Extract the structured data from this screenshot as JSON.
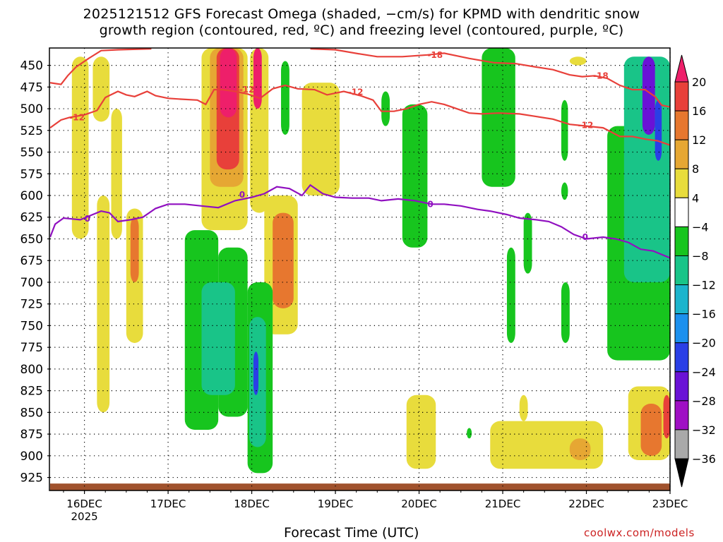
{
  "chart_data": {
    "type": "heatmap",
    "title_line1": "2025121512 GFS Forecast Omega (shaded, −cm/s) for KPMD with dendritic snow",
    "title_line2": "growth region (contoured, red, ºC) and freezing level (contoured, purple, ºC)",
    "xlabel": "Forecast Time (UTC)",
    "x_ticks": [
      "16DEC",
      "17DEC",
      "18DEC",
      "19DEC",
      "20DEC",
      "21DEC",
      "22DEC",
      "23DEC"
    ],
    "x_tick_days": [
      1,
      2,
      3,
      4,
      5,
      6,
      7,
      8
    ],
    "year_label": "2025",
    "xlim_days": [
      0.59,
      8
    ],
    "y_ticks": [
      450,
      475,
      500,
      525,
      550,
      575,
      600,
      625,
      650,
      675,
      700,
      725,
      750,
      775,
      800,
      825,
      850,
      875,
      900,
      925
    ],
    "y_label_texts": [
      "450",
      "475",
      "500",
      "525",
      "550",
      "575",
      "600",
      "625",
      "650",
      "675",
      "700",
      "725",
      "750",
      "775",
      "800",
      "825",
      "850",
      "875",
      "900",
      "925"
    ],
    "ylim_hpa": [
      430,
      940
    ],
    "y_reversed": true,
    "colorbar": {
      "levels": [
        20,
        16,
        12,
        8,
        4,
        -4,
        -8,
        -12,
        -16,
        -20,
        -24,
        -28,
        -32,
        -36
      ],
      "labels": [
        "20",
        "16",
        "12",
        "8",
        "4",
        "−4",
        "−8",
        "−12",
        "−16",
        "−20",
        "−24",
        "−28",
        "−32",
        "−36"
      ],
      "colors": [
        "#ee1f6a",
        "#e8403a",
        "#e7772f",
        "#e6a733",
        "#e8dc3c",
        "#ffffff",
        "#17c51e",
        "#19c488",
        "#1cb4cd",
        "#1c90ee",
        "#2a3fe6",
        "#6a12d6",
        "#9f10c4",
        "#a9a9a9",
        "#000000"
      ]
    },
    "contours_red": [
      {
        "value": -18,
        "label": "-18",
        "points": [
          [
            0.59,
            470
          ],
          [
            0.72,
            472
          ],
          [
            0.8,
            462
          ],
          [
            0.9,
            452
          ],
          [
            1.05,
            442
          ],
          [
            1.2,
            433
          ],
          [
            1.4,
            432
          ],
          [
            1.8,
            431
          ]
        ]
      },
      {
        "value": -18,
        "label": "-18",
        "points": [
          [
            3.7,
            431
          ],
          [
            4.0,
            432
          ],
          [
            4.3,
            437
          ],
          [
            4.5,
            440
          ],
          [
            4.8,
            440
          ],
          [
            5.1,
            438
          ],
          [
            5.3,
            436
          ],
          [
            5.6,
            442
          ],
          [
            5.9,
            447
          ],
          [
            6.15,
            448
          ],
          [
            6.4,
            452
          ],
          [
            6.6,
            455
          ],
          [
            6.8,
            461
          ],
          [
            6.95,
            463
          ],
          [
            7.1,
            462
          ],
          [
            7.25,
            465
          ],
          [
            7.4,
            473
          ],
          [
            7.55,
            478
          ],
          [
            7.7,
            478
          ],
          [
            7.82,
            486
          ],
          [
            7.9,
            496
          ],
          [
            8.0,
            498
          ]
        ]
      },
      {
        "value": -12,
        "label": "-12",
        "points": [
          [
            0.59,
            522
          ],
          [
            0.72,
            513
          ],
          [
            0.82,
            510
          ],
          [
            1.0,
            507
          ],
          [
            1.15,
            502
          ],
          [
            1.25,
            487
          ],
          [
            1.4,
            480
          ],
          [
            1.5,
            484
          ],
          [
            1.6,
            486
          ],
          [
            1.75,
            480
          ],
          [
            1.85,
            485
          ],
          [
            2.0,
            488
          ],
          [
            2.15,
            489
          ],
          [
            2.35,
            490
          ],
          [
            2.45,
            495
          ],
          [
            2.55,
            478
          ],
          [
            2.65,
            478
          ],
          [
            2.8,
            480
          ],
          [
            2.95,
            483
          ],
          [
            3.1,
            488
          ],
          [
            3.25,
            477
          ],
          [
            3.4,
            473
          ],
          [
            3.55,
            477
          ],
          [
            3.75,
            478
          ],
          [
            3.9,
            484
          ],
          [
            4.1,
            480
          ],
          [
            4.3,
            485
          ],
          [
            4.45,
            490
          ],
          [
            4.55,
            503
          ],
          [
            4.7,
            503
          ],
          [
            4.85,
            500
          ],
          [
            5.0,
            495
          ],
          [
            5.15,
            492
          ],
          [
            5.3,
            495
          ],
          [
            5.45,
            500
          ],
          [
            5.6,
            505
          ],
          [
            5.75,
            506
          ],
          [
            5.95,
            505
          ],
          [
            6.2,
            506
          ],
          [
            6.4,
            509
          ],
          [
            6.6,
            512
          ],
          [
            6.8,
            518
          ],
          [
            7.0,
            520
          ],
          [
            7.2,
            522
          ],
          [
            7.4,
            532
          ],
          [
            7.55,
            532
          ],
          [
            7.7,
            535
          ],
          [
            7.85,
            537
          ],
          [
            8.0,
            542
          ]
        ]
      }
    ],
    "contours_purple": [
      {
        "value": 0,
        "label": "0",
        "points": [
          [
            0.59,
            648
          ],
          [
            0.65,
            633
          ],
          [
            0.75,
            626
          ],
          [
            0.85,
            627
          ],
          [
            0.95,
            628
          ],
          [
            1.1,
            622
          ],
          [
            1.2,
            618
          ],
          [
            1.3,
            620
          ],
          [
            1.4,
            630
          ],
          [
            1.55,
            628
          ],
          [
            1.7,
            625
          ],
          [
            1.85,
            615
          ],
          [
            2.0,
            610
          ],
          [
            2.2,
            610
          ],
          [
            2.4,
            612
          ],
          [
            2.6,
            614
          ],
          [
            2.8,
            606
          ],
          [
            3.0,
            602
          ],
          [
            3.15,
            598
          ],
          [
            3.3,
            590
          ],
          [
            3.45,
            592
          ],
          [
            3.6,
            600
          ],
          [
            3.7,
            588
          ],
          [
            3.85,
            598
          ],
          [
            4.0,
            602
          ],
          [
            4.2,
            603
          ],
          [
            4.4,
            603
          ],
          [
            4.55,
            606
          ],
          [
            4.75,
            604
          ],
          [
            4.95,
            606
          ],
          [
            5.15,
            610
          ],
          [
            5.3,
            610
          ],
          [
            5.5,
            612
          ],
          [
            5.7,
            616
          ],
          [
            5.85,
            618
          ],
          [
            6.05,
            622
          ],
          [
            6.2,
            626
          ],
          [
            6.4,
            628
          ],
          [
            6.55,
            630
          ],
          [
            6.7,
            636
          ],
          [
            6.85,
            645
          ],
          [
            7.0,
            650
          ],
          [
            7.2,
            648
          ],
          [
            7.35,
            650
          ],
          [
            7.5,
            654
          ],
          [
            7.65,
            662
          ],
          [
            7.8,
            664
          ],
          [
            7.9,
            668
          ],
          [
            8.0,
            672
          ]
        ]
      }
    ],
    "omega_regions": [
      {
        "value": 4,
        "color": "#e8dc3c",
        "x0": 0.85,
        "x1": 1.05,
        "p0": 440,
        "p1": 650
      },
      {
        "value": 4,
        "color": "#e8dc3c",
        "x0": 1.1,
        "x1": 1.3,
        "p0": 440,
        "p1": 515
      },
      {
        "value": 4,
        "color": "#e8dc3c",
        "x0": 1.15,
        "x1": 1.3,
        "p0": 600,
        "p1": 850
      },
      {
        "value": 4,
        "color": "#e8dc3c",
        "x0": 1.32,
        "x1": 1.45,
        "p0": 500,
        "p1": 650
      },
      {
        "value": 4,
        "color": "#e8dc3c",
        "x0": 1.5,
        "x1": 1.7,
        "p0": 615,
        "p1": 770
      },
      {
        "value": 12,
        "color": "#e7772f",
        "x0": 1.55,
        "x1": 1.65,
        "p0": 625,
        "p1": 700
      },
      {
        "value": 4,
        "color": "#e8dc3c",
        "x0": 2.25,
        "x1": 2.35,
        "p0": 770,
        "p1": 830
      },
      {
        "value": 4,
        "color": "#e8dc3c",
        "x0": 2.4,
        "x1": 2.95,
        "p0": 430,
        "p1": 640
      },
      {
        "value": 8,
        "color": "#e6a733",
        "x0": 2.5,
        "x1": 2.9,
        "p0": 430,
        "p1": 590
      },
      {
        "value": 16,
        "color": "#e8403a",
        "x0": 2.58,
        "x1": 2.85,
        "p0": 430,
        "p1": 570
      },
      {
        "value": 20,
        "color": "#ee1f6a",
        "x0": 2.62,
        "x1": 2.82,
        "p0": 430,
        "p1": 510
      },
      {
        "value": 4,
        "color": "#e8dc3c",
        "x0": 2.98,
        "x1": 3.2,
        "p0": 430,
        "p1": 620
      },
      {
        "value": 20,
        "color": "#ee1f6a",
        "x0": 3.02,
        "x1": 3.12,
        "p0": 430,
        "p1": 500
      },
      {
        "value": 4,
        "color": "#e8dc3c",
        "x0": 3.15,
        "x1": 3.55,
        "p0": 600,
        "p1": 760
      },
      {
        "value": 12,
        "color": "#e7772f",
        "x0": 3.25,
        "x1": 3.5,
        "p0": 620,
        "p1": 730
      },
      {
        "value": 4,
        "color": "#e8dc3c",
        "x0": 3.6,
        "x1": 4.05,
        "p0": 470,
        "p1": 600
      },
      {
        "value": 4,
        "color": "#e8dc3c",
        "x0": 4.85,
        "x1": 5.2,
        "p0": 830,
        "p1": 915
      },
      {
        "value": 4,
        "color": "#e8dc3c",
        "x0": 5.85,
        "x1": 7.2,
        "p0": 860,
        "p1": 915
      },
      {
        "value": 8,
        "color": "#e6a733",
        "x0": 6.8,
        "x1": 7.05,
        "p0": 880,
        "p1": 905
      },
      {
        "value": 4,
        "color": "#e8dc3c",
        "x0": 6.2,
        "x1": 6.3,
        "p0": 830,
        "p1": 860
      },
      {
        "value": 4,
        "color": "#e8dc3c",
        "x0": 6.8,
        "x1": 7.0,
        "p0": 440,
        "p1": 450
      },
      {
        "value": 4,
        "color": "#e8dc3c",
        "x0": 7.5,
        "x1": 8.0,
        "p0": 820,
        "p1": 905
      },
      {
        "value": 12,
        "color": "#e7772f",
        "x0": 7.65,
        "x1": 7.9,
        "p0": 840,
        "p1": 900
      },
      {
        "value": 16,
        "color": "#e8403a",
        "x0": 7.92,
        "x1": 8.0,
        "p0": 830,
        "p1": 880
      },
      {
        "value": -4,
        "color": "#17c51e",
        "x0": 2.2,
        "x1": 2.6,
        "p0": 640,
        "p1": 870
      },
      {
        "value": -4,
        "color": "#17c51e",
        "x0": 2.6,
        "x1": 2.95,
        "p0": 660,
        "p1": 855
      },
      {
        "value": -12,
        "color": "#19c488",
        "x0": 2.4,
        "x1": 2.8,
        "p0": 700,
        "p1": 830
      },
      {
        "value": -4,
        "color": "#17c51e",
        "x0": 2.95,
        "x1": 3.25,
        "p0": 700,
        "p1": 920
      },
      {
        "value": -12,
        "color": "#19c488",
        "x0": 2.97,
        "x1": 3.17,
        "p0": 740,
        "p1": 890
      },
      {
        "value": -20,
        "color": "#2a3fe6",
        "x0": 3.02,
        "x1": 3.08,
        "p0": 780,
        "p1": 830
      },
      {
        "value": -4,
        "color": "#17c51e",
        "x0": 3.35,
        "x1": 3.45,
        "p0": 445,
        "p1": 530
      },
      {
        "value": -4,
        "color": "#17c51e",
        "x0": 4.8,
        "x1": 5.1,
        "p0": 495,
        "p1": 660
      },
      {
        "value": -4,
        "color": "#17c51e",
        "x0": 4.55,
        "x1": 4.65,
        "p0": 480,
        "p1": 520
      },
      {
        "value": -4,
        "color": "#17c51e",
        "x0": 5.75,
        "x1": 6.15,
        "p0": 430,
        "p1": 590
      },
      {
        "value": -4,
        "color": "#17c51e",
        "x0": 6.25,
        "x1": 6.35,
        "p0": 620,
        "p1": 690
      },
      {
        "value": -4,
        "color": "#17c51e",
        "x0": 6.05,
        "x1": 6.15,
        "p0": 660,
        "p1": 770
      },
      {
        "value": -4,
        "color": "#17c51e",
        "x0": 6.7,
        "x1": 6.78,
        "p0": 490,
        "p1": 560
      },
      {
        "value": -4,
        "color": "#17c51e",
        "x0": 6.7,
        "x1": 6.78,
        "p0": 585,
        "p1": 605
      },
      {
        "value": -4,
        "color": "#17c51e",
        "x0": 6.7,
        "x1": 6.8,
        "p0": 700,
        "p1": 770
      },
      {
        "value": -4,
        "color": "#17c51e",
        "x0": 7.25,
        "x1": 8.0,
        "p0": 520,
        "p1": 790
      },
      {
        "value": -12,
        "color": "#19c488",
        "x0": 7.45,
        "x1": 8.0,
        "p0": 440,
        "p1": 700
      },
      {
        "value": -28,
        "color": "#6a12d6",
        "x0": 7.67,
        "x1": 7.82,
        "p0": 440,
        "p1": 530
      },
      {
        "value": -24,
        "color": "#2a3fe6",
        "x0": 7.82,
        "x1": 7.9,
        "p0": 490,
        "p1": 560
      },
      {
        "value": -4,
        "color": "#17c51e",
        "x0": 5.57,
        "x1": 5.63,
        "p0": 868,
        "p1": 880
      }
    ],
    "surface": {
      "color": "#a0522d",
      "p0": 932,
      "p1": 940
    }
  }
}
